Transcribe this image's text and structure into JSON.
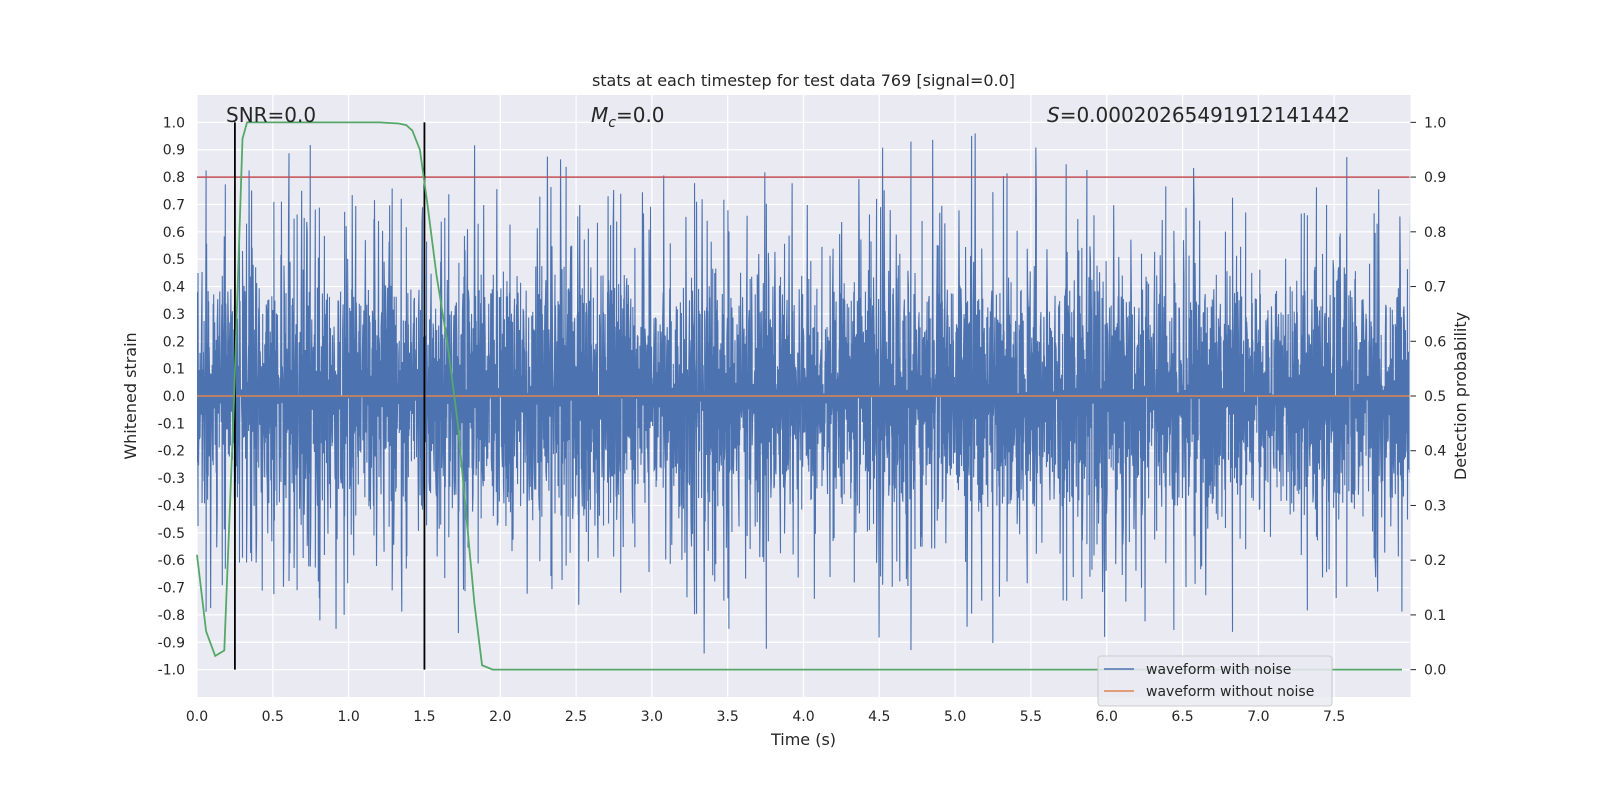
{
  "chart_data": {
    "type": "line",
    "title": "stats at each timestep for test data 769 [signal=0.0]",
    "xlabel": "Time (s)",
    "ylabel": "Whitened strain",
    "y2label": "Detection probability",
    "xlim": [
      0.0,
      8.0
    ],
    "ylim": [
      -1.1,
      1.1
    ],
    "y2lim": [
      -0.05,
      1.05
    ],
    "x_ticks": [
      "0.0",
      "0.5",
      "1.0",
      "1.5",
      "2.0",
      "2.5",
      "3.0",
      "3.5",
      "4.0",
      "4.5",
      "5.0",
      "5.5",
      "6.0",
      "6.5",
      "7.0",
      "7.5"
    ],
    "y_ticks": [
      "1.0",
      "0.9",
      "0.8",
      "0.7",
      "0.6",
      "0.5",
      "0.4",
      "0.3",
      "0.2",
      "0.1",
      "0.0",
      "-0.1",
      "-0.2",
      "-0.3",
      "-0.4",
      "-0.5",
      "-0.6",
      "-0.7",
      "-0.8",
      "-0.9",
      "-1.0"
    ],
    "y2_ticks": [
      "1.0",
      "0.9",
      "0.8",
      "0.7",
      "0.6",
      "0.5",
      "0.4",
      "0.3",
      "0.2",
      "0.1",
      "0.0"
    ],
    "grid": true,
    "legend_position": "bottom-right",
    "annotations": {
      "snr": "SNR=0.0",
      "mc_symbol": "M",
      "mc_sub": "c",
      "mc_value": "=0.0",
      "s_symbol": "S",
      "s_value": "=0.00020265491912141442"
    },
    "threshold": {
      "axis": "y2",
      "value": 0.9,
      "color": "#c44e52"
    },
    "vertical_markers": [
      0.25,
      1.5
    ],
    "series": [
      {
        "name": "waveform with noise",
        "color": "#4c72b0",
        "axis": "y",
        "description": "dense noise trace spanning roughly -1.0 to 1.0",
        "x_range": [
          0.0,
          8.0
        ],
        "envelope": {
          "core_min": -0.39,
          "core_max": 0.39,
          "peak_min": -0.99,
          "peak_max": 0.98
        }
      },
      {
        "name": "waveform without noise",
        "color": "#dd8452",
        "axis": "y",
        "x": [
          0.0,
          8.0
        ],
        "values": [
          0.0,
          0.0
        ]
      },
      {
        "name": "detection probability",
        "color": "#55a868",
        "axis": "y2",
        "x": [
          0.0,
          0.06,
          0.12,
          0.18,
          0.24,
          0.3,
          0.33,
          0.4,
          0.6,
          0.8,
          1.0,
          1.2,
          1.33,
          1.38,
          1.42,
          1.47,
          1.52,
          1.58,
          1.65,
          1.72,
          1.78,
          1.83,
          1.88,
          1.95,
          2.1,
          3.0,
          4.0,
          5.0,
          6.0,
          7.0,
          7.95
        ],
        "values": [
          0.21,
          0.07,
          0.025,
          0.035,
          0.46,
          0.97,
          1.0,
          1.0,
          1.0,
          1.0,
          1.0,
          1.0,
          0.998,
          0.995,
          0.985,
          0.95,
          0.85,
          0.72,
          0.6,
          0.45,
          0.27,
          0.12,
          0.008,
          0.0,
          0.0,
          0.0,
          0.0,
          0.0,
          0.0,
          0.0,
          0.0
        ]
      }
    ]
  }
}
